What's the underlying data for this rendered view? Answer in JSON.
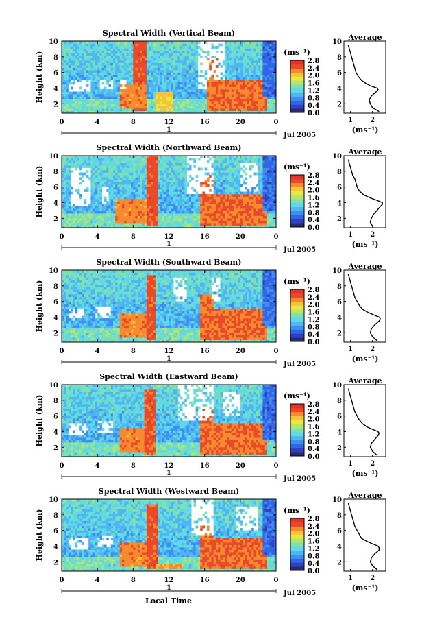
{
  "colors": {
    "colorbar": [
      "#2a2a6a",
      "#3040c0",
      "#3366e6",
      "#3e8ff0",
      "#4fb6f2",
      "#5fd8e8",
      "#7fe0b0",
      "#b4e66e",
      "#e8e840",
      "#f5c23a",
      "#f58a2e",
      "#e84a2a",
      "#e43428"
    ],
    "missing": "#ffffff"
  },
  "chart_data": [
    {
      "type": "heatmap",
      "title": "Spectral Width (Vertical Beam)",
      "ylabel": "Height (km)",
      "yticks": [
        "2",
        "4",
        "6",
        "8",
        "10"
      ],
      "xticks": [
        "0",
        "4",
        "8",
        "12",
        "16",
        "20",
        "0"
      ],
      "date_marker": "1",
      "date_label": "Jul 2005",
      "units": "(ms⁻¹)",
      "colorbar_ticks": [
        "2.8",
        "2.4",
        "2.0",
        "1.6",
        "1.2",
        "0.8",
        "0.4",
        "0.0"
      ],
      "xlim": [
        0,
        24
      ],
      "ylim": [
        0.8,
        10
      ],
      "clim": [
        0.0,
        2.8
      ],
      "high_bands": [
        {
          "x": [
            8,
            9.5
          ],
          "y": [
            1.2,
            10
          ],
          "v": 2.7
        },
        {
          "x": [
            16.2,
            17.5
          ],
          "y": [
            1.2,
            8
          ],
          "v": 2.6
        },
        {
          "x": [
            17.5,
            23
          ],
          "y": [
            1.2,
            5
          ],
          "v": 2.6
        },
        {
          "x": [
            6.5,
            9.5
          ],
          "y": [
            1.5,
            4.5
          ],
          "v": 2.5
        },
        {
          "x": [
            10.5,
            12.5
          ],
          "y": [
            1.2,
            3.5
          ],
          "v": 2.2
        }
      ],
      "missing_regions": [
        {
          "x": [
            0.8,
            3.3
          ],
          "y": [
            3.5,
            5
          ]
        },
        {
          "x": [
            4.2,
            5.7
          ],
          "y": [
            3.8,
            5.2
          ]
        },
        {
          "x": [
            15.2,
            16.3
          ],
          "y": [
            4,
            10
          ]
        },
        {
          "x": [
            6.5,
            7.3
          ],
          "y": [
            3.8,
            5
          ]
        },
        {
          "x": [
            16,
            18.2
          ],
          "y": [
            5,
            10
          ]
        }
      ],
      "average": {
        "title": "Average",
        "xlabel": "(ms⁻¹)",
        "xticks": [
          "1",
          "2"
        ],
        "yticks": [
          "2",
          "4",
          "6",
          "8",
          "10"
        ],
        "xlim": [
          0.7,
          2.6
        ],
        "ylim": [
          0.8,
          10
        ],
        "height": [
          1,
          1.5,
          2,
          2.5,
          3,
          3.5,
          3.8,
          4,
          4.3,
          4.6,
          5,
          5.5,
          6,
          6.5,
          7,
          7.5,
          8,
          8.5,
          9,
          9.5
        ],
        "value": [
          2.3,
          2.0,
          1.9,
          1.85,
          1.95,
          2.15,
          2.25,
          2.2,
          1.9,
          1.7,
          1.5,
          1.35,
          1.25,
          1.2,
          1.15,
          1.1,
          1.05,
          1.0,
          0.95,
          0.9
        ]
      }
    },
    {
      "type": "heatmap",
      "title": "Spectral Width (Northward Beam)",
      "ylabel": "Height (km)",
      "yticks": [
        "2",
        "4",
        "6",
        "8",
        "10"
      ],
      "xticks": [
        "0",
        "4",
        "8",
        "12",
        "16",
        "20",
        "0"
      ],
      "date_marker": "1",
      "date_label": "Jul 2005",
      "units": "(ms⁻¹)",
      "colorbar_ticks": [
        "2.8",
        "2.4",
        "2.0",
        "1.6",
        "1.2",
        "0.8",
        "0.4",
        "0.0"
      ],
      "xlim": [
        0,
        24
      ],
      "ylim": [
        0.8,
        10
      ],
      "clim": [
        0.0,
        2.8
      ],
      "high_bands": [
        {
          "x": [
            9.5,
            10.8
          ],
          "y": [
            1.2,
            10
          ],
          "v": 2.7
        },
        {
          "x": [
            15.5,
            17
          ],
          "y": [
            1.2,
            7.5
          ],
          "v": 2.6
        },
        {
          "x": [
            17,
            23
          ],
          "y": [
            1.2,
            5
          ],
          "v": 2.6
        },
        {
          "x": [
            6,
            9.5
          ],
          "y": [
            1.5,
            4.5
          ],
          "v": 2.5
        }
      ],
      "missing_regions": [
        {
          "x": [
            1,
            3.3
          ],
          "y": [
            3.5,
            8.5
          ]
        },
        {
          "x": [
            4.5,
            5.2
          ],
          "y": [
            4,
            6
          ]
        },
        {
          "x": [
            14,
            17
          ],
          "y": [
            5,
            10
          ]
        },
        {
          "x": [
            20,
            22
          ],
          "y": [
            5.5,
            9
          ]
        }
      ],
      "average": {
        "title": "Average",
        "xlabel": "(ms⁻¹)",
        "xticks": [
          "1",
          "2"
        ],
        "yticks": [
          "2",
          "4",
          "6",
          "8",
          "10"
        ],
        "xlim": [
          0.7,
          2.6
        ],
        "ylim": [
          0.8,
          10
        ],
        "height": [
          1,
          1.5,
          2,
          2.5,
          3,
          3.5,
          3.8,
          4,
          4.3,
          4.6,
          5,
          5.5,
          6,
          6.5,
          7,
          7.5,
          8,
          8.5,
          9,
          9.5
        ],
        "value": [
          2.0,
          1.9,
          1.95,
          2.05,
          2.2,
          2.35,
          2.45,
          2.45,
          2.2,
          1.9,
          1.6,
          1.4,
          1.3,
          1.25,
          1.2,
          1.1,
          1.05,
          1.0,
          0.95,
          0.9
        ]
      }
    },
    {
      "type": "heatmap",
      "title": "Spectral Width (Southward Beam)",
      "ylabel": "Height (km)",
      "yticks": [
        "2",
        "4",
        "6",
        "8",
        "10"
      ],
      "xticks": [
        "0",
        "4",
        "8",
        "12",
        "16",
        "20",
        "0"
      ],
      "date_marker": "1",
      "date_label": "Jul 2005",
      "units": "(ms⁻¹)",
      "colorbar_ticks": [
        "2.8",
        "2.4",
        "2.0",
        "1.6",
        "1.2",
        "0.8",
        "0.4",
        "0.0"
      ],
      "xlim": [
        0,
        24
      ],
      "ylim": [
        0.8,
        10
      ],
      "clim": [
        0.0,
        2.8
      ],
      "high_bands": [
        {
          "x": [
            9.5,
            10.5
          ],
          "y": [
            1.2,
            9.5
          ],
          "v": 2.7
        },
        {
          "x": [
            15.5,
            17
          ],
          "y": [
            1.2,
            7
          ],
          "v": 2.6
        },
        {
          "x": [
            17,
            23
          ],
          "y": [
            1.2,
            5
          ],
          "v": 2.6
        },
        {
          "x": [
            6.5,
            9.5
          ],
          "y": [
            1.5,
            4.5
          ],
          "v": 2.5
        }
      ],
      "missing_regions": [
        {
          "x": [
            0.8,
            2.5
          ],
          "y": [
            3.5,
            5
          ]
        },
        {
          "x": [
            3.8,
            5.5
          ],
          "y": [
            3.8,
            5.3
          ]
        },
        {
          "x": [
            12.5,
            14
          ],
          "y": [
            6,
            9
          ]
        },
        {
          "x": [
            16.8,
            17.8
          ],
          "y": [
            6,
            9
          ]
        }
      ],
      "average": {
        "title": "Average",
        "xlabel": "(ms⁻¹)",
        "xticks": [
          "1",
          "2"
        ],
        "yticks": [
          "2",
          "4",
          "6",
          "8",
          "10"
        ],
        "xlim": [
          0.7,
          2.6
        ],
        "ylim": [
          0.8,
          10
        ],
        "height": [
          1,
          1.5,
          2,
          2.5,
          3,
          3.5,
          3.8,
          4,
          4.3,
          4.6,
          5,
          5.5,
          6,
          6.5,
          7,
          7.5,
          8,
          8.5,
          9,
          9.5
        ],
        "value": [
          2.2,
          2.0,
          1.9,
          1.95,
          2.1,
          2.3,
          2.35,
          2.3,
          2.05,
          1.8,
          1.55,
          1.4,
          1.3,
          1.2,
          1.15,
          1.1,
          1.05,
          1.0,
          0.95,
          0.9
        ]
      }
    },
    {
      "type": "heatmap",
      "title": "Spectral Width (Eastward Beam)",
      "ylabel": "Height (km)",
      "yticks": [
        "2",
        "4",
        "6",
        "8",
        "10"
      ],
      "xticks": [
        "0",
        "4",
        "8",
        "12",
        "16",
        "20",
        "0"
      ],
      "date_marker": "1",
      "date_label": "Jul 2005",
      "units": "(ms⁻¹)",
      "colorbar_ticks": [
        "2.8",
        "2.4",
        "2.0",
        "1.6",
        "1.2",
        "0.8",
        "0.4",
        "0.0"
      ],
      "xlim": [
        0,
        24
      ],
      "ylim": [
        0.8,
        10
      ],
      "clim": [
        0.0,
        2.8
      ],
      "high_bands": [
        {
          "x": [
            9.3,
            10.5
          ],
          "y": [
            1.2,
            9.5
          ],
          "v": 2.7
        },
        {
          "x": [
            15.5,
            17
          ],
          "y": [
            1.2,
            7
          ],
          "v": 2.6
        },
        {
          "x": [
            17,
            23
          ],
          "y": [
            1.2,
            5
          ],
          "v": 2.6
        },
        {
          "x": [
            6.5,
            9.3
          ],
          "y": [
            1.5,
            4.5
          ],
          "v": 2.5
        }
      ],
      "missing_regions": [
        {
          "x": [
            0.8,
            3
          ],
          "y": [
            3.5,
            5
          ]
        },
        {
          "x": [
            4,
            5.8
          ],
          "y": [
            4,
            5.5
          ]
        },
        {
          "x": [
            13,
            17
          ],
          "y": [
            5.5,
            10
          ]
        },
        {
          "x": [
            18,
            20
          ],
          "y": [
            6,
            9
          ]
        }
      ],
      "average": {
        "title": "Average",
        "xlabel": "(ms⁻¹)",
        "xticks": [
          "1",
          "2"
        ],
        "yticks": [
          "2",
          "4",
          "6",
          "8",
          "10"
        ],
        "xlim": [
          0.7,
          2.6
        ],
        "ylim": [
          0.8,
          10
        ],
        "height": [
          1,
          1.5,
          2,
          2.5,
          3,
          3.5,
          3.8,
          4,
          4.3,
          4.6,
          5,
          5.5,
          6,
          6.5,
          7,
          7.5,
          8,
          8.5,
          9,
          9.5
        ],
        "value": [
          2.2,
          2.0,
          1.9,
          1.95,
          2.1,
          2.25,
          2.3,
          2.25,
          2.0,
          1.75,
          1.55,
          1.4,
          1.3,
          1.2,
          1.15,
          1.1,
          1.05,
          1.0,
          0.95,
          0.9
        ]
      }
    },
    {
      "type": "heatmap",
      "title": "Spectral Width (Westward Beam)",
      "ylabel": "Height (km)",
      "yticks": [
        "2",
        "4",
        "6",
        "8",
        "10"
      ],
      "xticks": [
        "0",
        "4",
        "8",
        "12",
        "16",
        "20",
        "0"
      ],
      "date_marker": "1",
      "date_label": "Jul 2005",
      "units": "(ms⁻¹)",
      "colorbar_ticks": [
        "2.8",
        "2.4",
        "2.0",
        "1.6",
        "1.2",
        "0.8",
        "0.4",
        "0.0"
      ],
      "xlim": [
        0,
        24
      ],
      "ylim": [
        0.8,
        10
      ],
      "clim": [
        0.0,
        2.8
      ],
      "high_bands": [
        {
          "x": [
            9.5,
            10.8
          ],
          "y": [
            1.2,
            9.5
          ],
          "v": 2.7
        },
        {
          "x": [
            15.5,
            17
          ],
          "y": [
            1.2,
            7
          ],
          "v": 2.6
        },
        {
          "x": [
            17,
            23
          ],
          "y": [
            1.2,
            5
          ],
          "v": 2.6
        },
        {
          "x": [
            6.5,
            9.5
          ],
          "y": [
            1.5,
            4.5
          ],
          "v": 2.5
        },
        {
          "x": [
            10.5,
            13.5
          ],
          "y": [
            1.2,
            1.8
          ],
          "v": 2.4
        }
      ],
      "missing_regions": [
        {
          "x": [
            0.8,
            3
          ],
          "y": [
            3.5,
            5
          ]
        },
        {
          "x": [
            4,
            5.8
          ],
          "y": [
            4,
            5.3
          ]
        },
        {
          "x": [
            14.5,
            17
          ],
          "y": [
            5.5,
            10
          ]
        },
        {
          "x": [
            19.5,
            22
          ],
          "y": [
            6,
            9
          ]
        }
      ],
      "average": {
        "title": "Average",
        "xlabel": "(ms⁻¹)",
        "xticks": [
          "1",
          "2"
        ],
        "yticks": [
          "2",
          "4",
          "6",
          "8",
          "10"
        ],
        "xlim": [
          0.7,
          2.6
        ],
        "ylim": [
          0.8,
          10
        ],
        "height": [
          1,
          1.5,
          2,
          2.5,
          3,
          3.5,
          3.8,
          4,
          4.3,
          4.6,
          5,
          5.5,
          6,
          6.5,
          7,
          7.5,
          8,
          8.5,
          9,
          9.5
        ],
        "value": [
          2.2,
          2.0,
          1.9,
          1.95,
          2.1,
          2.3,
          2.3,
          2.25,
          2.0,
          1.75,
          1.5,
          1.4,
          1.3,
          1.2,
          1.15,
          1.1,
          1.05,
          1.0,
          0.95,
          0.9
        ]
      }
    }
  ],
  "footer": {
    "xlabel": "Local Time"
  }
}
